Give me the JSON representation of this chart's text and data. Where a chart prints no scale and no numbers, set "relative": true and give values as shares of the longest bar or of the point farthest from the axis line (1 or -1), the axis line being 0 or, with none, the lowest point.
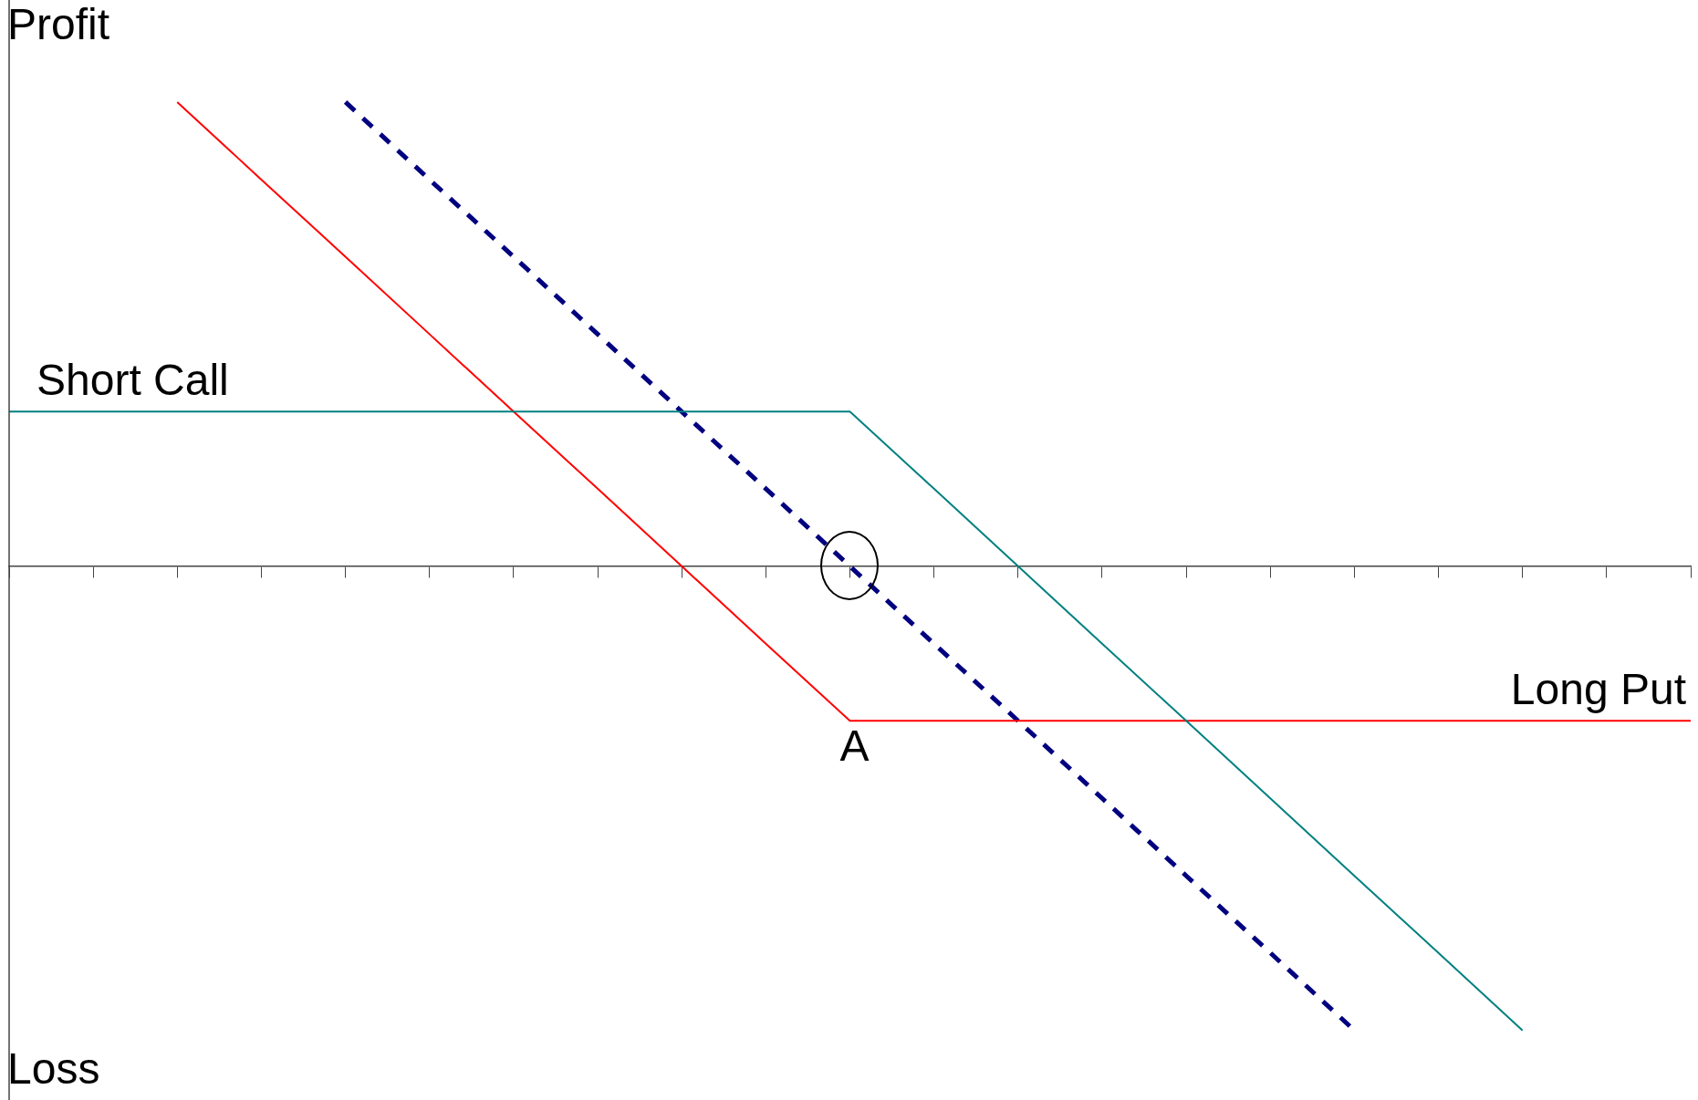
{
  "chart_data": {
    "type": "line",
    "relative": true,
    "marker": "none",
    "legend": false,
    "grid": false,
    "categories": [
      null,
      null,
      null,
      null,
      null,
      null,
      null,
      null,
      null,
      null,
      null,
      null,
      null,
      null,
      null,
      null,
      null,
      null,
      null,
      null,
      null
    ],
    "annotations": [
      "Profit",
      "Loss",
      "A"
    ],
    "series": [
      {
        "name": "Short Call",
        "color": "#008080",
        "values": [
          0.333,
          0.333,
          0.333,
          0.333,
          0.333,
          0.333,
          0.333,
          0.333,
          0.333,
          0.333,
          0.333,
          0.167,
          0,
          -0.167,
          -0.333,
          -0.5,
          -0.667,
          -0.833,
          -1,
          null,
          null
        ]
      },
      {
        "name": "Long Put",
        "color": "#ff0000",
        "values": [
          null,
          null,
          1,
          0.833,
          0.667,
          0.5,
          0.333,
          0.167,
          0,
          -0.167,
          -0.333,
          -0.333,
          -0.333,
          -0.333,
          -0.333,
          -0.333,
          -0.333,
          -0.333,
          -0.333,
          -0.333,
          -0.333
        ]
      },
      {
        "color": "#000080",
        "line_style": "dashed",
        "values": [
          null,
          null,
          null,
          null,
          1,
          0.833,
          0.667,
          0.5,
          0.333,
          0.167,
          0,
          -0.167,
          -0.333,
          -0.5,
          -0.667,
          -0.833,
          -1,
          null,
          null,
          null,
          null
        ]
      }
    ]
  }
}
